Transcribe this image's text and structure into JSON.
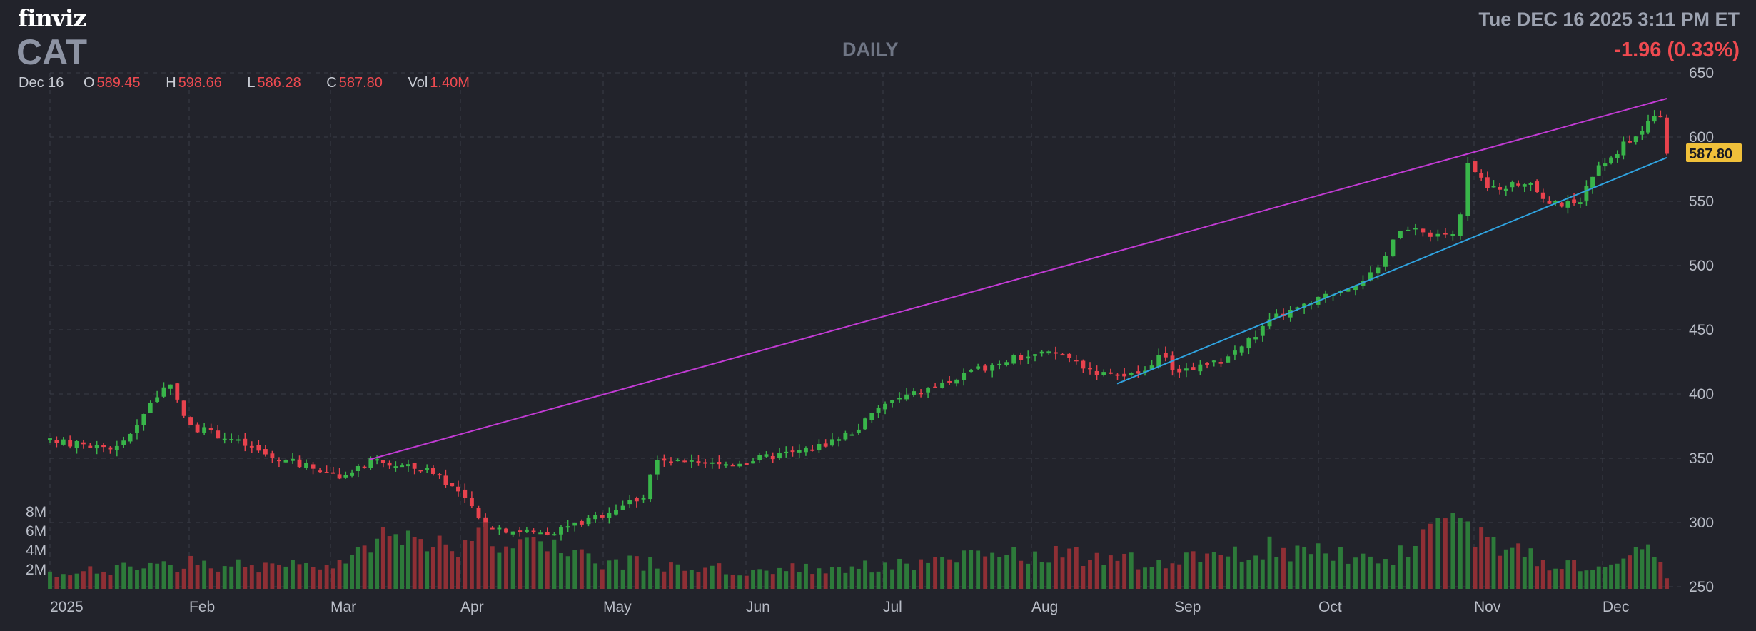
{
  "header": {
    "logo": "finviz",
    "ticker": "CAT",
    "period": "DAILY",
    "datetime": "Tue DEC 16 2025 3:11 PM ET",
    "change": "-1.96 (0.33%)"
  },
  "ohlc": {
    "date": "Dec 16",
    "open_label": "O",
    "open": "589.45",
    "high_label": "H",
    "high": "598.66",
    "low_label": "L",
    "low": "586.28",
    "close_label": "C",
    "close": "587.80",
    "vol_label": "Vol",
    "vol": "1.40M"
  },
  "colors": {
    "background": "#22232b",
    "up": "#39b54a",
    "down": "#e8424d",
    "up_volume": "#2d7a3a",
    "down_volume": "#8f2f35",
    "upper_trendline": "#c23bd4",
    "lower_trendline": "#2fa3e0",
    "last_price_badge": "#f0c03a"
  },
  "chart_data": {
    "type": "candlestick",
    "title": "",
    "y_axis": {
      "ticks": [
        250,
        300,
        350,
        400,
        450,
        500,
        550,
        600,
        650
      ],
      "range": [
        250,
        650
      ],
      "side": "right"
    },
    "volume_axis": {
      "ticks": [
        "2M",
        "4M",
        "6M",
        "8M"
      ],
      "range_millions": [
        0,
        10
      ]
    },
    "x_axis": {
      "tick_labels": [
        "2025",
        "Feb",
        "Mar",
        "Apr",
        "May",
        "Jun",
        "Jul",
        "Aug",
        "Sep",
        "Oct",
        "Nov",
        "Dec"
      ]
    },
    "last_price_label": "587.80",
    "grid": true,
    "anchors": [
      {
        "m": 0.0,
        "p": 363
      },
      {
        "m": 0.5,
        "p": 358
      },
      {
        "m": 0.75,
        "p": 397
      },
      {
        "m": 0.85,
        "p": 408
      },
      {
        "m": 1.0,
        "p": 375
      },
      {
        "m": 1.3,
        "p": 365
      },
      {
        "m": 1.6,
        "p": 350
      },
      {
        "m": 2.0,
        "p": 340
      },
      {
        "m": 2.1,
        "p": 333
      },
      {
        "m": 2.3,
        "p": 348
      },
      {
        "m": 2.8,
        "p": 340
      },
      {
        "m": 3.0,
        "p": 322
      },
      {
        "m": 3.05,
        "p": 315
      },
      {
        "m": 3.15,
        "p": 300
      },
      {
        "m": 3.3,
        "p": 295
      },
      {
        "m": 3.6,
        "p": 292
      },
      {
        "m": 3.9,
        "p": 302
      },
      {
        "m": 4.3,
        "p": 322
      },
      {
        "m": 4.35,
        "p": 348
      },
      {
        "m": 4.8,
        "p": 345
      },
      {
        "m": 5.0,
        "p": 348
      },
      {
        "m": 5.5,
        "p": 358
      },
      {
        "m": 5.8,
        "p": 372
      },
      {
        "m": 6.0,
        "p": 392
      },
      {
        "m": 6.5,
        "p": 412
      },
      {
        "m": 6.8,
        "p": 426
      },
      {
        "m": 7.0,
        "p": 430
      },
      {
        "m": 7.2,
        "p": 432
      },
      {
        "m": 7.4,
        "p": 420
      },
      {
        "m": 7.6,
        "p": 412
      },
      {
        "m": 7.8,
        "p": 418
      },
      {
        "m": 7.9,
        "p": 432
      },
      {
        "m": 8.0,
        "p": 418
      },
      {
        "m": 8.3,
        "p": 424
      },
      {
        "m": 8.5,
        "p": 440
      },
      {
        "m": 8.7,
        "p": 460
      },
      {
        "m": 8.9,
        "p": 468
      },
      {
        "m": 9.2,
        "p": 485
      },
      {
        "m": 9.4,
        "p": 497
      },
      {
        "m": 9.5,
        "p": 530
      },
      {
        "m": 9.7,
        "p": 525
      },
      {
        "m": 9.9,
        "p": 525
      },
      {
        "m": 9.95,
        "p": 580
      },
      {
        "m": 10.1,
        "p": 560
      },
      {
        "m": 10.4,
        "p": 565
      },
      {
        "m": 10.6,
        "p": 548
      },
      {
        "m": 10.8,
        "p": 548
      },
      {
        "m": 11.0,
        "p": 580
      },
      {
        "m": 11.3,
        "p": 605
      },
      {
        "m": 11.45,
        "p": 618
      },
      {
        "m": 11.5,
        "p": 588
      }
    ],
    "volume_anchors": [
      {
        "m": 0.0,
        "v": 1.5
      },
      {
        "m": 1.0,
        "v": 2.8
      },
      {
        "m": 2.0,
        "v": 2.3
      },
      {
        "m": 2.6,
        "v": 6.8
      },
      {
        "m": 3.0,
        "v": 4.5
      },
      {
        "m": 3.2,
        "v": 5.8
      },
      {
        "m": 4.0,
        "v": 3.0
      },
      {
        "m": 5.0,
        "v": 2.0
      },
      {
        "m": 6.0,
        "v": 2.5
      },
      {
        "m": 7.0,
        "v": 3.8
      },
      {
        "m": 8.0,
        "v": 2.8
      },
      {
        "m": 8.6,
        "v": 4.5
      },
      {
        "m": 9.4,
        "v": 3.2
      },
      {
        "m": 9.9,
        "v": 7.0
      },
      {
        "m": 10.5,
        "v": 3.0
      },
      {
        "m": 11.0,
        "v": 2.5
      },
      {
        "m": 11.45,
        "v": 4.3
      },
      {
        "m": 11.5,
        "v": 1.4
      }
    ],
    "trendlines": [
      {
        "name": "",
        "color": "upper",
        "from": {
          "m": 2.3,
          "p": 349
        },
        "to": {
          "m": 11.5,
          "p": 630
        }
      },
      {
        "name": "",
        "color": "lower",
        "from": {
          "m": 7.6,
          "p": 408
        },
        "to": {
          "m": 11.5,
          "p": 584
        }
      }
    ]
  }
}
